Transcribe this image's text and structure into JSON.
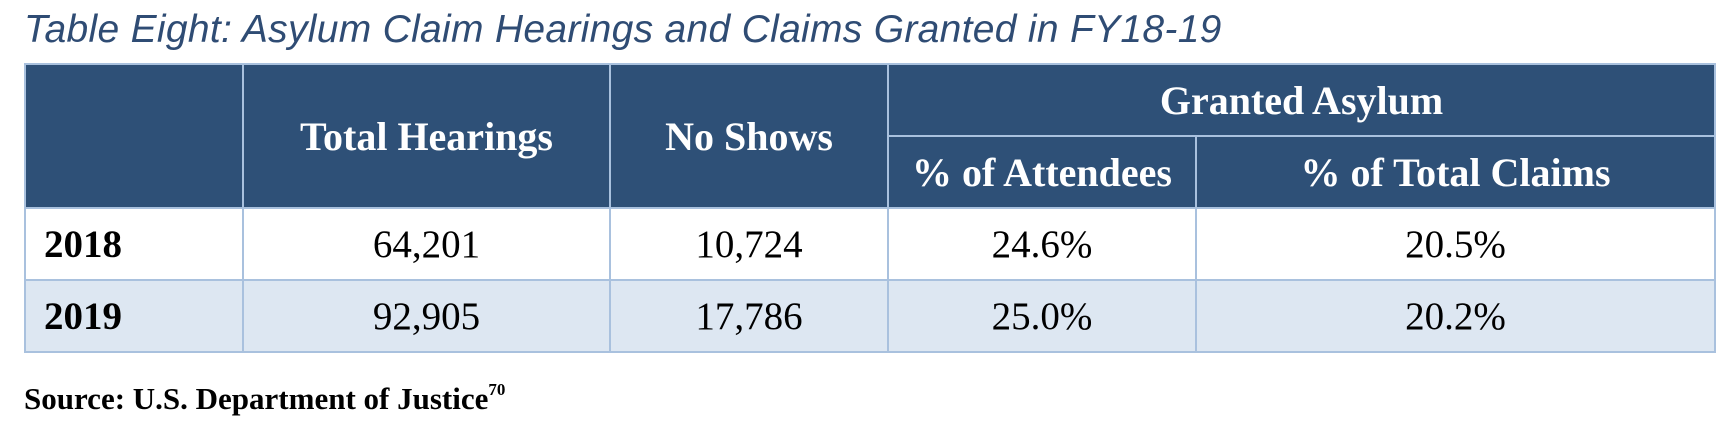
{
  "caption": "Table Eight: Asylum Claim Hearings and Claims Granted in FY18-19",
  "table": {
    "headers": {
      "year": "",
      "total_hearings": "Total Hearings",
      "no_shows": "No Shows",
      "granted_group": "Granted Asylum",
      "pct_attendees": "% of Attendees",
      "pct_total_claims": "% of Total Claims"
    },
    "rows": [
      {
        "year": "2018",
        "total_hearings": "64,201",
        "no_shows": "10,724",
        "pct_attendees": "24.6%",
        "pct_total_claims": "20.5%"
      },
      {
        "year": "2019",
        "total_hearings": "92,905",
        "no_shows": "17,786",
        "pct_attendees": "25.0%",
        "pct_total_claims": "20.2%"
      }
    ]
  },
  "source": {
    "text": "Source: U.S. Department of Justice",
    "footnote": "70"
  },
  "colors": {
    "header_bg": "#2e5077",
    "header_text": "#ffffff",
    "caption_text": "#2f4c74",
    "grid_lines": "#a9c1de",
    "alt_row_bg": "#dde7f2"
  }
}
